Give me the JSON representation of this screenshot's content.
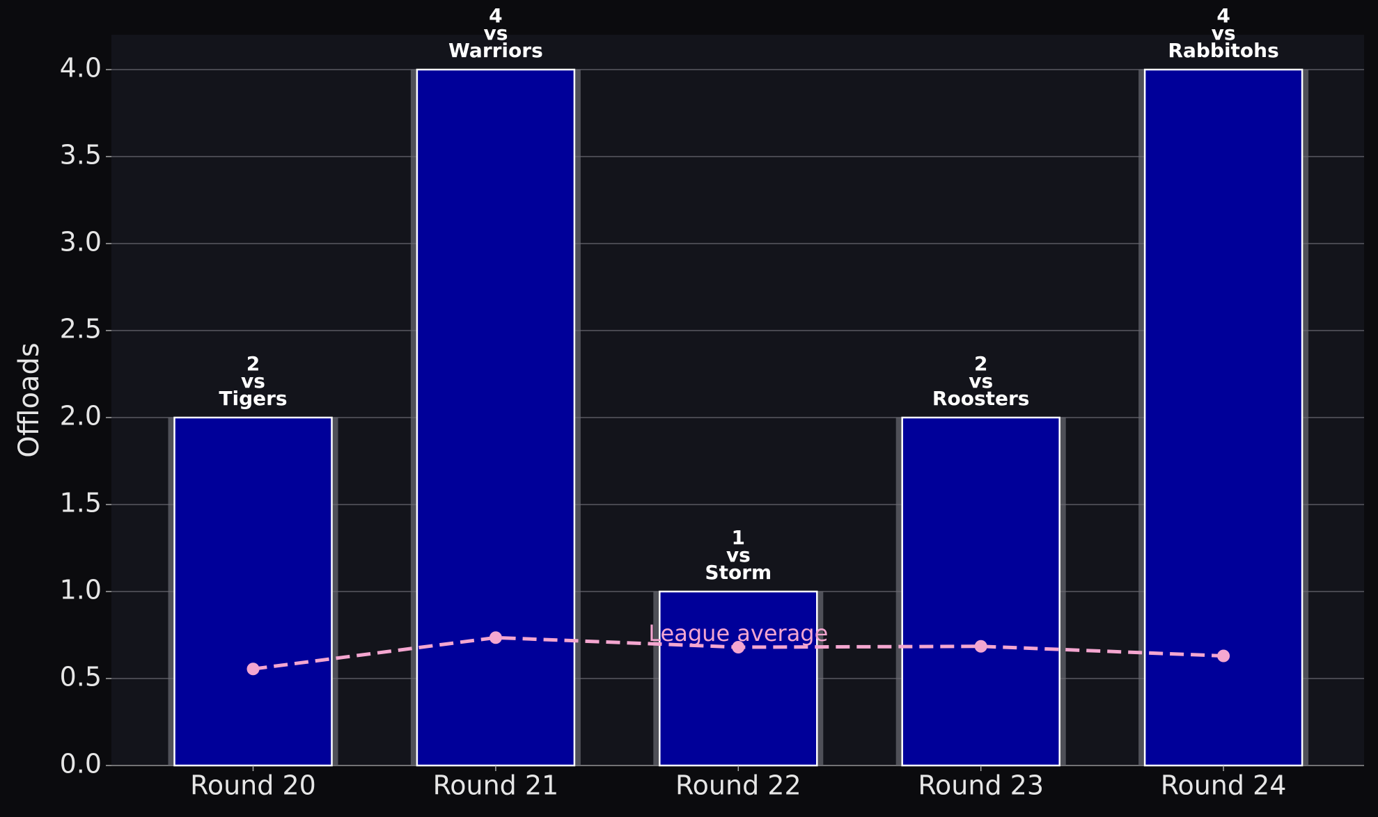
{
  "chart_data": {
    "type": "bar",
    "ylabel": "Offloads",
    "categories": [
      "Round 20",
      "Round 21",
      "Round 22",
      "Round 23",
      "Round 24"
    ],
    "series": [
      {
        "name": "Offloads",
        "type": "bar",
        "color": "#000099",
        "values": [
          2,
          4,
          1,
          2,
          4
        ]
      },
      {
        "name": "League average",
        "type": "line",
        "color": "#f4a6d0",
        "values": [
          0.555,
          0.735,
          0.68,
          0.685,
          0.63
        ]
      }
    ],
    "matchups": [
      [
        "vs",
        "Tigers"
      ],
      [
        "vs",
        "Warriors"
      ],
      [
        "vs",
        "Storm"
      ],
      [
        "vs",
        "Roosters"
      ],
      [
        "vs",
        "Rabbitohs"
      ]
    ],
    "ylim": [
      0,
      4.2
    ],
    "yticks": [
      {
        "value": 0,
        "label": "0.0"
      },
      {
        "value": 0.5,
        "label": "0.5"
      },
      {
        "value": 1,
        "label": "1.0"
      },
      {
        "value": 1.5,
        "label": "1.5"
      },
      {
        "value": 2,
        "label": "2.0"
      },
      {
        "value": 2.5,
        "label": "2.5"
      },
      {
        "value": 3,
        "label": "3.0"
      },
      {
        "value": 3.5,
        "label": "3.5"
      },
      {
        "value": 4,
        "label": "4.0"
      }
    ],
    "grid": true
  }
}
